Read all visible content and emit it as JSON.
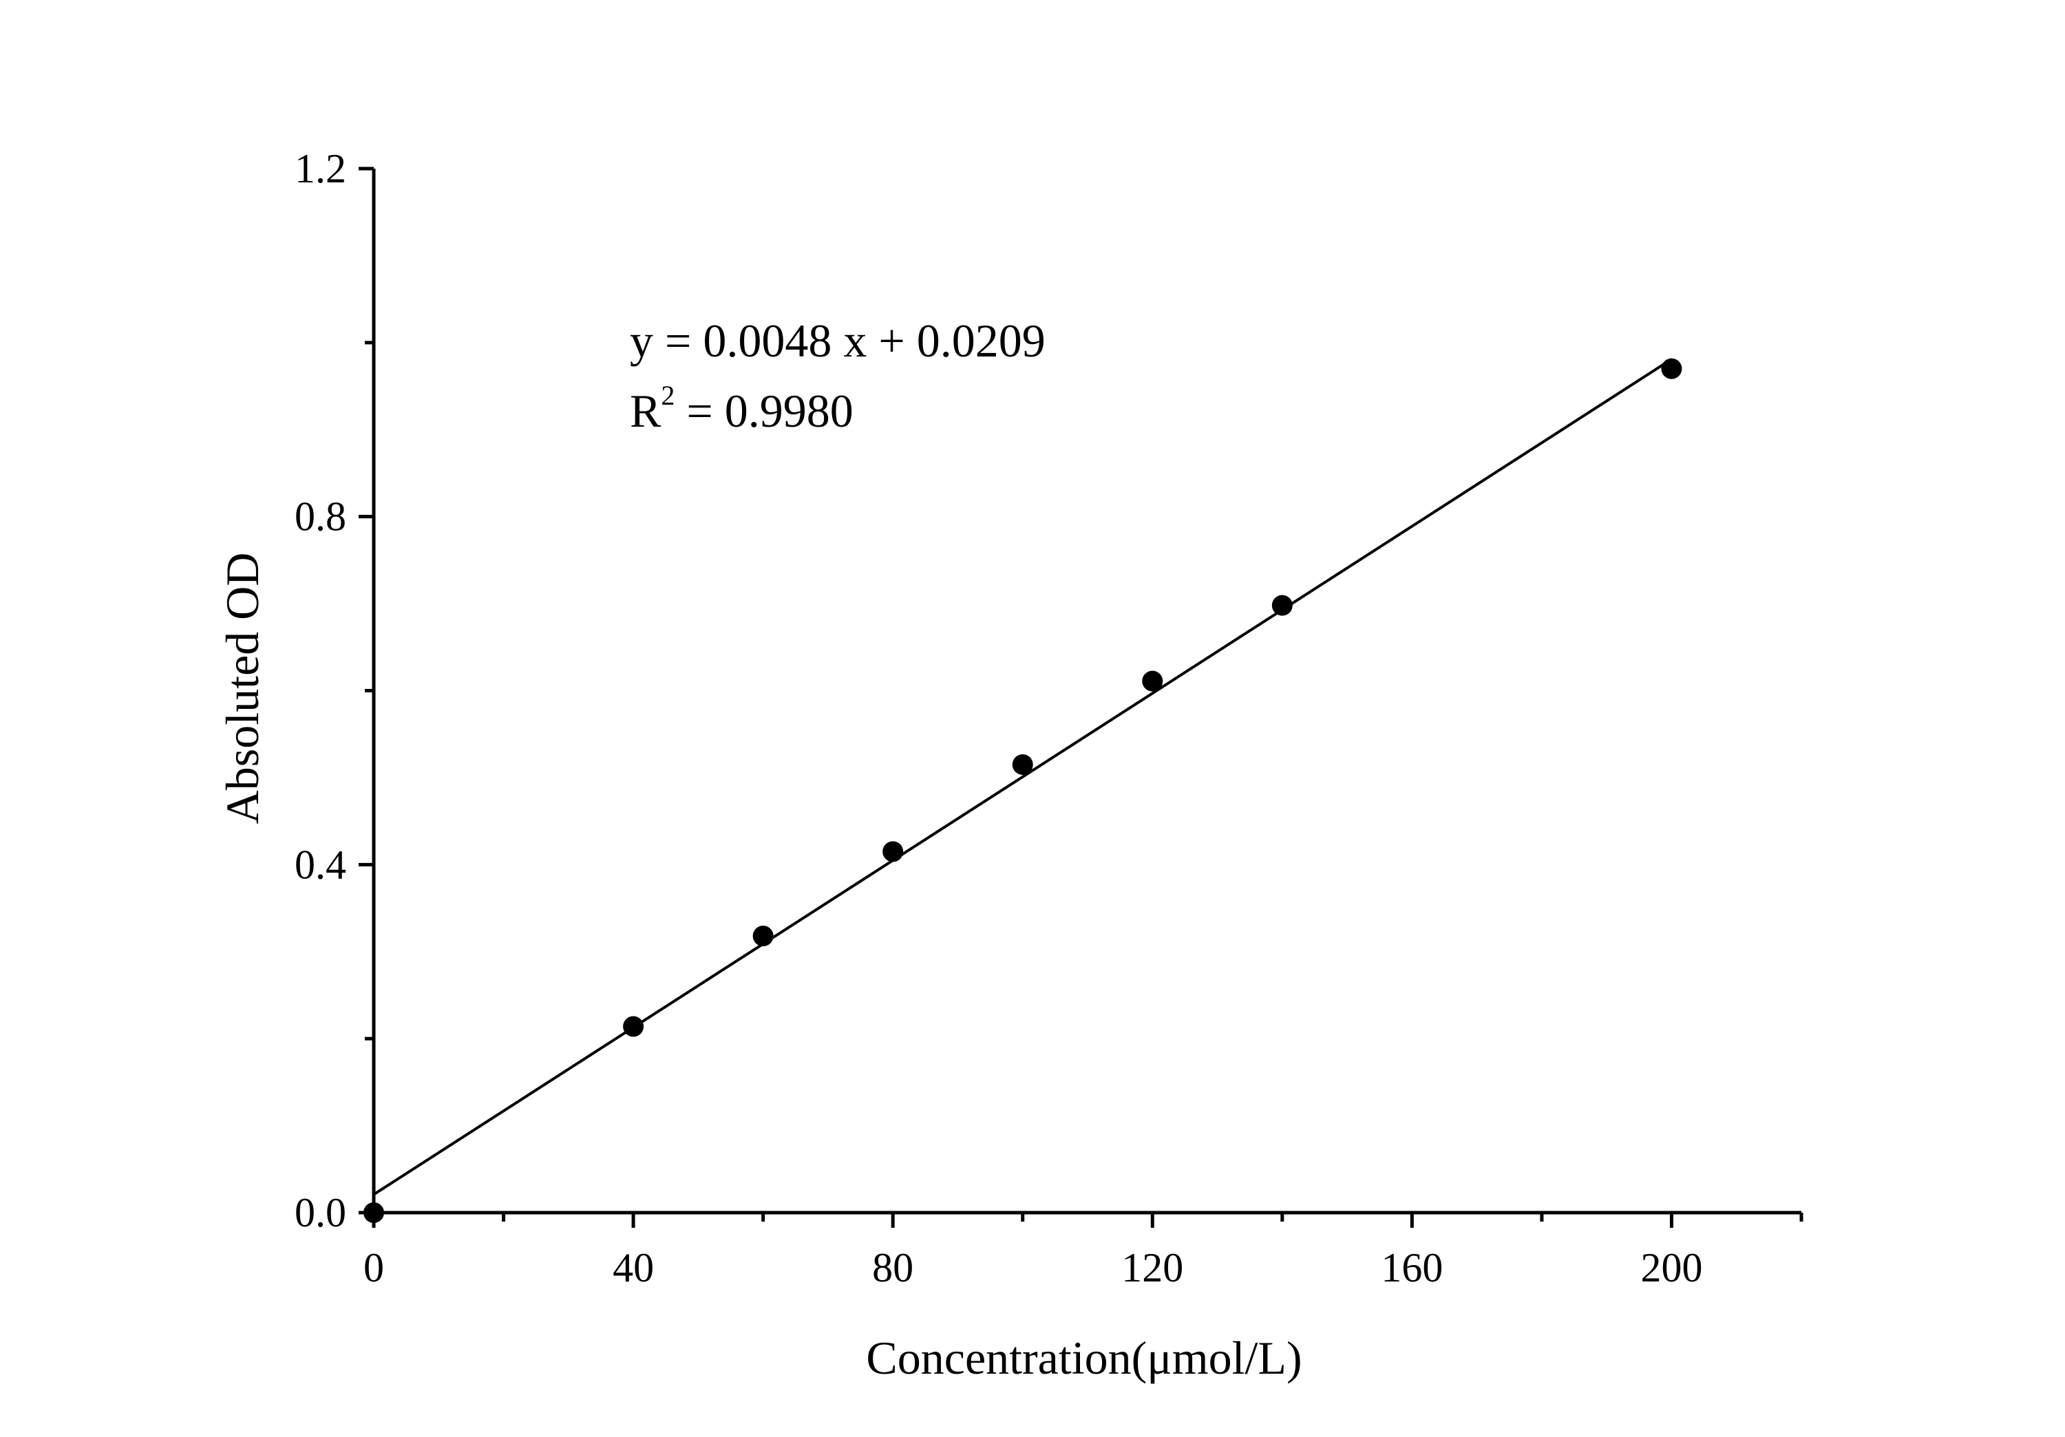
{
  "chart_data": {
    "type": "scatter",
    "title": "",
    "xlabel": "Concentration(μmol/L)",
    "ylabel": "Absoluted OD",
    "xlim": [
      0,
      220
    ],
    "ylim": [
      0,
      1.2
    ],
    "x_ticks": [
      0,
      40,
      80,
      120,
      160,
      200
    ],
    "x_tick_labels": [
      "0",
      "40",
      "80",
      "120",
      "160",
      "200"
    ],
    "x_minor_ticks": [
      20,
      60,
      100,
      140,
      180,
      220
    ],
    "y_ticks": [
      0.0,
      0.4,
      0.8,
      1.2
    ],
    "y_tick_labels": [
      "0.0",
      "0.4",
      "0.8",
      "1.2"
    ],
    "y_minor_ticks": [
      0.2,
      0.6,
      1.0
    ],
    "grid": false,
    "series": [
      {
        "x": [
          0,
          40,
          60,
          80,
          100,
          120,
          140,
          200
        ],
        "y": [
          0.0,
          0.214,
          0.318,
          0.415,
          0.515,
          0.611,
          0.698,
          0.97
        ]
      }
    ],
    "fit_line": {
      "slope": 0.0048,
      "intercept": 0.0209,
      "x_range": [
        0,
        200
      ]
    },
    "annotation": {
      "equation": "y = 0.0048 x + 0.0209",
      "r2_base": "R",
      "r2_exp": "2",
      "r2_rest": " = 0.9980"
    },
    "colors": {
      "marker": "#000000",
      "line": "#000000",
      "axis": "#000000"
    }
  }
}
